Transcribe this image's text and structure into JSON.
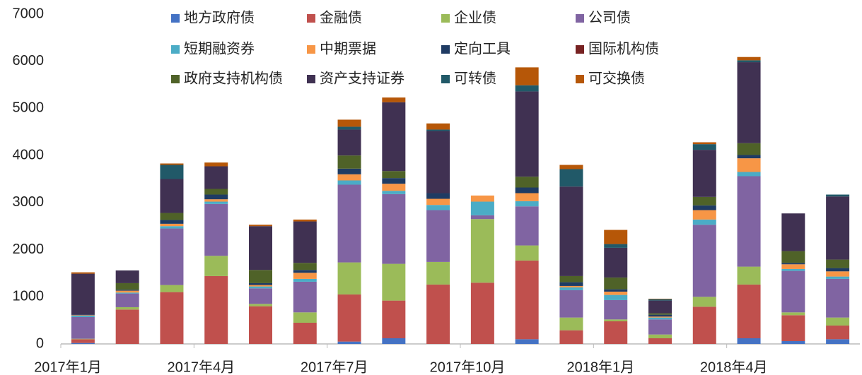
{
  "chart_data": {
    "type": "stacked_bar",
    "categories": [
      "2017年1月",
      null,
      null,
      "2017年4月",
      null,
      null,
      "2017年7月",
      null,
      null,
      "2017年10月",
      null,
      null,
      "2018年1月",
      null,
      null,
      "2018年4月",
      null,
      null
    ],
    "ylim": [
      0,
      7000
    ],
    "yticks": [
      0,
      1000,
      2000,
      3000,
      4000,
      5000,
      6000,
      7000
    ],
    "grid": false,
    "legend": "top",
    "series": [
      {
        "name": "地方政府债",
        "color": "#4472c4",
        "values": [
          20,
          0,
          0,
          0,
          0,
          0,
          50,
          120,
          0,
          0,
          100,
          0,
          0,
          0,
          0,
          120,
          60,
          100
        ]
      },
      {
        "name": "金融债",
        "color": "#c0504d",
        "values": [
          80,
          730,
          1100,
          1440,
          800,
          450,
          1000,
          800,
          1260,
          1300,
          1670,
          290,
          480,
          120,
          790,
          1140,
          550,
          290
        ]
      },
      {
        "name": "企业债",
        "color": "#9bbb59",
        "values": [
          10,
          50,
          150,
          430,
          50,
          220,
          680,
          780,
          480,
          1350,
          320,
          270,
          40,
          80,
          210,
          380,
          60,
          170
        ]
      },
      {
        "name": "公司债",
        "color": "#8064a2",
        "values": [
          460,
          290,
          1200,
          1100,
          330,
          650,
          1650,
          1480,
          1100,
          80,
          830,
          580,
          410,
          320,
          1530,
          1920,
          880,
          820
        ]
      },
      {
        "name": "短期融资券",
        "color": "#4bacc6",
        "values": [
          30,
          20,
          50,
          50,
          40,
          60,
          90,
          70,
          110,
          290,
          110,
          60,
          110,
          40,
          110,
          90,
          40,
          50
        ]
      },
      {
        "name": "中期票据",
        "color": "#f79646",
        "values": [
          10,
          40,
          50,
          50,
          30,
          130,
          130,
          150,
          130,
          130,
          170,
          30,
          70,
          20,
          200,
          290,
          100,
          110
        ]
      },
      {
        "name": "定向工具",
        "color": "#1f3b63",
        "values": [
          10,
          20,
          80,
          100,
          40,
          60,
          120,
          120,
          120,
          0,
          120,
          80,
          50,
          40,
          100,
          70,
          30,
          70
        ]
      },
      {
        "name": "国际机构债",
        "color": "#772222",
        "values": [
          0,
          0,
          0,
          0,
          0,
          0,
          0,
          0,
          0,
          0,
          0,
          0,
          0,
          0,
          0,
          0,
          0,
          0
        ]
      },
      {
        "name": "政府支持机构债",
        "color": "#4f6228",
        "values": [
          0,
          140,
          150,
          120,
          280,
          150,
          280,
          150,
          0,
          0,
          230,
          130,
          250,
          30,
          180,
          250,
          250,
          180
        ]
      },
      {
        "name": "资产支持证券",
        "color": "#403152",
        "values": [
          870,
          270,
          720,
          480,
          930,
          880,
          550,
          1460,
          1320,
          0,
          1810,
          1900,
          630,
          270,
          1000,
          1720,
          800,
          1340
        ]
      },
      {
        "name": "可转债",
        "color": "#215968",
        "values": [
          0,
          0,
          300,
          0,
          0,
          0,
          60,
          0,
          30,
          0,
          130,
          370,
          80,
          30,
          120,
          40,
          0,
          40
        ]
      },
      {
        "name": "可交换债",
        "color": "#b65708",
        "values": [
          30,
          0,
          30,
          80,
          30,
          40,
          150,
          100,
          130,
          0,
          380,
          90,
          300,
          10,
          40,
          70,
          0,
          0
        ]
      }
    ]
  }
}
